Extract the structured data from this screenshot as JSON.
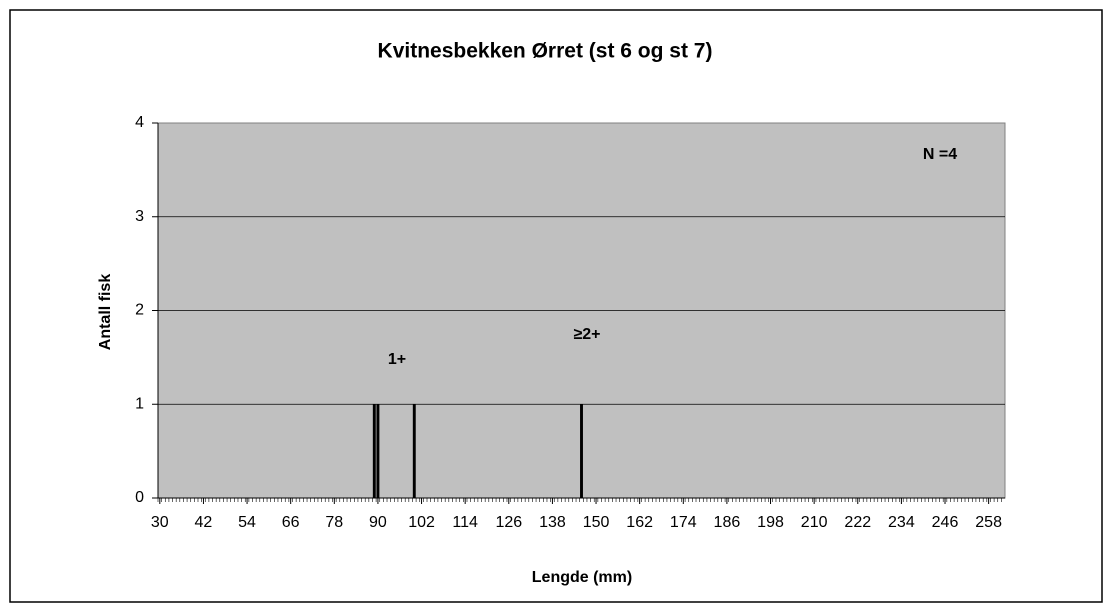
{
  "chart_data": {
    "type": "bar",
    "title": "Kvitnesbekken Ørret (st 6 og st 7)",
    "x_label": "Lengde (mm)",
    "y_label": "Antall fisk",
    "x": [
      89,
      90,
      100,
      146
    ],
    "values": [
      1,
      1,
      1,
      1
    ],
    "color": "#000000",
    "xlim": [
      29.5,
      262.5
    ],
    "xticks": [
      30,
      42,
      54,
      66,
      78,
      90,
      102,
      114,
      126,
      138,
      150,
      162,
      174,
      186,
      198,
      210,
      222,
      234,
      246,
      258
    ],
    "ylim": [
      0,
      4
    ],
    "yticks": [
      0,
      1,
      2,
      3,
      4
    ],
    "grid": true,
    "annotations": [
      "1+",
      "≥2+",
      "N =4"
    ]
  }
}
